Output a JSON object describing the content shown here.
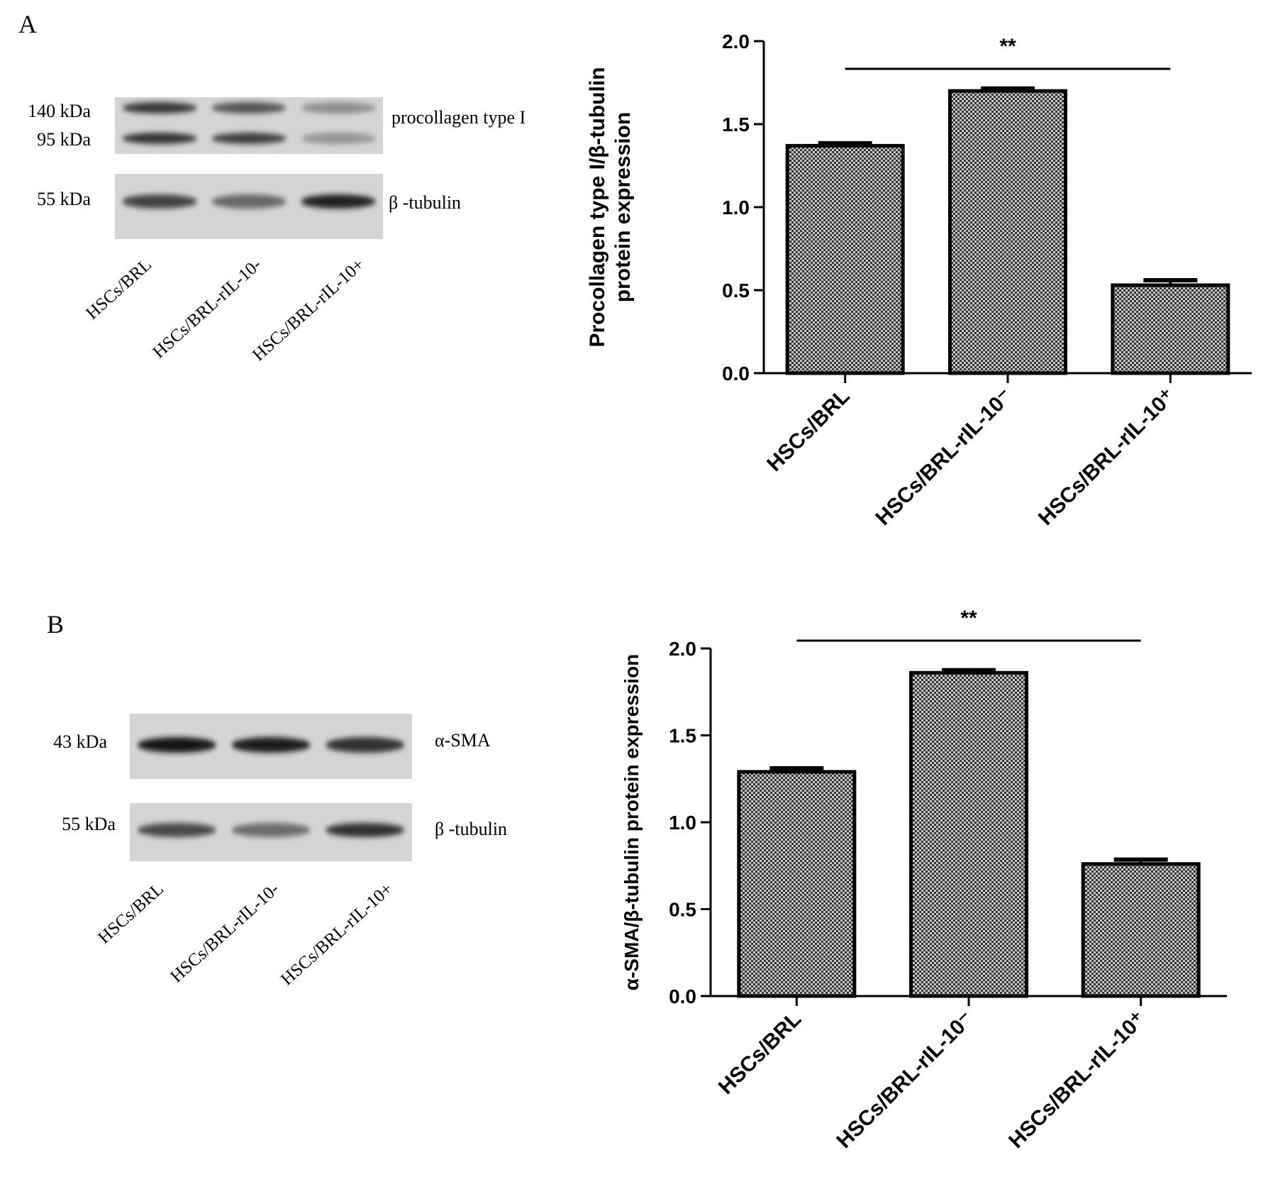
{
  "panels": [
    {
      "letter": "A",
      "blots": [
        {
          "bands": [
            [
              0.78,
              0.62,
              0.32
            ],
            [
              0.8,
              0.74,
              0.28
            ]
          ],
          "target": "procollagen type I",
          "kda_labels": [
            "140 kDa",
            "95 kDa"
          ]
        },
        {
          "bands": [
            [
              0.72,
              0.52,
              0.9
            ]
          ],
          "target": "β -tubulin",
          "kda_labels": [
            "55 kDa"
          ]
        }
      ],
      "lanes": [
        "HSCs/BRL",
        "HSCs/BRL-rIL-10-",
        "HSCs/BRL-rIL-10+"
      ]
    },
    {
      "letter": "B",
      "blots": [
        {
          "bands": [
            [
              0.95,
              0.92,
              0.82
            ]
          ],
          "target": "α-SMA",
          "kda_labels": [
            "43 kDa"
          ]
        },
        {
          "bands": [
            [
              0.68,
              0.5,
              0.82
            ]
          ],
          "target": "β -tubulin",
          "kda_labels": [
            "55 kDa"
          ]
        }
      ],
      "lanes": [
        "HSCs/BRL",
        "HSCs/BRL-rIL-10-",
        "HSCs/BRL-rIL-10+"
      ]
    }
  ],
  "chart_data": [
    {
      "type": "bar",
      "categories": [
        "HSCs/BRL",
        "HSCs/BRL-rIL-10⁻",
        "HSCs/BRL-rIL-10⁺"
      ],
      "values": [
        1.37,
        1.7,
        0.53
      ],
      "errors": [
        0.015,
        0.015,
        0.03
      ],
      "ylabel": "Procollagen type I/β-tubulin protein expression",
      "ylabel_lines": [
        "Procollagen type I/β-tubulin",
        "protein expression"
      ],
      "ylim": [
        0,
        2.0
      ],
      "yticks": [
        "0.0",
        "0.5",
        "1.0",
        "1.5",
        "2.0"
      ],
      "significance": {
        "label": "**",
        "from": "HSCs/BRL",
        "to": "HSCs/BRL-rIL-10⁺"
      },
      "grid": false
    },
    {
      "type": "bar",
      "categories": [
        "HSCs/BRL",
        "HSCs/BRL-rIL-10⁻",
        "HSCs/BRL-rIL-10⁺"
      ],
      "values": [
        1.29,
        1.86,
        0.76
      ],
      "errors": [
        0.02,
        0.015,
        0.025
      ],
      "ylabel": "α-SMA/β-tubulin protein expression",
      "ylabel_lines": [
        "α-SMA/β-tubulin protein expression"
      ],
      "ylim": [
        0,
        2.0
      ],
      "yticks": [
        "0.0",
        "0.5",
        "1.0",
        "1.5",
        "2.0"
      ],
      "significance": {
        "label": "**",
        "from": "HSCs/BRL",
        "to": "HSCs/BRL-rIL-10⁺"
      },
      "grid": false
    }
  ]
}
